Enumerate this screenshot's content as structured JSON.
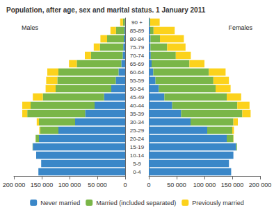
{
  "chart_data": [
    {
      "type": "bar",
      "title": "Population, after age, sex and marital status. 1 January 2011",
      "subtitle": "Males",
      "orientation": "horizontal",
      "stacked": true,
      "grid": false,
      "legend": "bottom",
      "categories": [
        "0-4",
        "5-9",
        "10-14",
        "15-19",
        "20-24",
        "25-29",
        "30-34",
        "35-39",
        "40-44",
        "45-49",
        "50-54",
        "55-59",
        "60-64",
        "65-69",
        "70-74",
        "75-79",
        "80-84",
        "85-89",
        "90 +"
      ],
      "xlim": [
        0,
        200000
      ],
      "xticks": [
        {
          "value": 0,
          "label": "0"
        },
        {
          "value": 50000,
          "label": "50 000"
        },
        {
          "value": 100000,
          "label": "100 000"
        },
        {
          "value": 150000,
          "label": "150 000"
        },
        {
          "value": 200000,
          "label": "200 000"
        }
      ],
      "series": [
        {
          "name": "Never married",
          "color": "#3a87c8",
          "values": [
            156000,
            151000,
            160000,
            166000,
            155000,
            120000,
            90000,
            72000,
            55000,
            38000,
            25000,
            17000,
            12000,
            7000,
            4500,
            3500,
            2500,
            1500,
            500
          ]
        },
        {
          "name": "Married (included separated)",
          "color": "#7ab648",
          "values": [
            0,
            0,
            0,
            500,
            6000,
            33000,
            65000,
            104000,
            115000,
            110000,
            100000,
            105000,
            108000,
            80000,
            57000,
            42000,
            30000,
            15000,
            3500
          ]
        },
        {
          "name": "Previously married",
          "color": "#fcd21c",
          "values": [
            0,
            0,
            0,
            0,
            200,
            1500,
            4000,
            9000,
            15000,
            18000,
            18000,
            20000,
            20000,
            14000,
            11000,
            11000,
            12000,
            10000,
            5000
          ]
        }
      ]
    },
    {
      "type": "bar",
      "subtitle": "Females",
      "orientation": "horizontal",
      "stacked": true,
      "grid": false,
      "categories": [
        "0-4",
        "5-9",
        "10-14",
        "15-19",
        "20-24",
        "25-29",
        "30-34",
        "35-39",
        "40-44",
        "45-49",
        "50-54",
        "55-59",
        "60-64",
        "65-69",
        "70-74",
        "75-79",
        "80-84",
        "85-89",
        "90 +"
      ],
      "xlim": [
        0,
        200000
      ],
      "xticks": [
        {
          "value": 0,
          "label": "0"
        },
        {
          "value": 50000,
          "label": "50 000"
        },
        {
          "value": 100000,
          "label": "100 000"
        },
        {
          "value": 150000,
          "label": "150 000"
        },
        {
          "value": 200000,
          "label": "200 000"
        }
      ],
      "series": [
        {
          "name": "Never married",
          "color": "#3a87c8",
          "values": [
            148000,
            144000,
            152000,
            157000,
            140000,
            105000,
            75000,
            58000,
            42000,
            28000,
            18000,
            12000,
            8000,
            5000,
            3500,
            3000,
            3000,
            2500,
            1500
          ]
        },
        {
          "name": "Married (included separated)",
          "color": "#7ab648",
          "values": [
            0,
            0,
            0,
            1500,
            12000,
            45000,
            77000,
            110000,
            117000,
            112000,
            102000,
            104000,
            100000,
            68000,
            45000,
            30000,
            17000,
            6000,
            1000
          ]
        },
        {
          "name": "Previously married",
          "color": "#fcd21c",
          "values": [
            0,
            0,
            0,
            0,
            500,
            3000,
            8000,
            15000,
            22000,
            26000,
            27000,
            28000,
            30000,
            27000,
            27000,
            33000,
            43000,
            38000,
            17000
          ]
        }
      ]
    }
  ]
}
